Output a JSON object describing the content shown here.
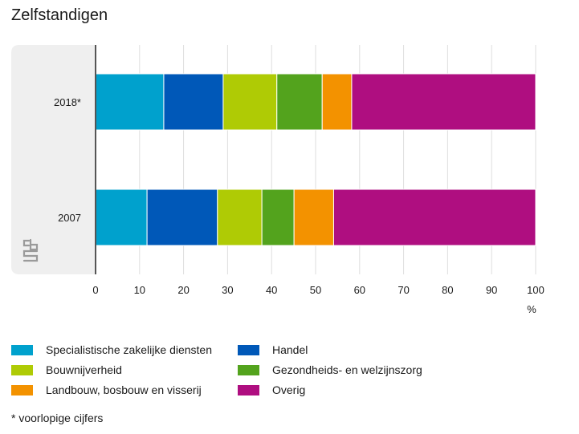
{
  "title": "Zelfstandigen",
  "footnote": "* voorlopige cijfers",
  "logo_icon": "cbs-logo-icon",
  "chart_data": {
    "type": "bar",
    "orientation": "horizontal",
    "stacked": true,
    "categories": [
      "2018*",
      "2007"
    ],
    "series": [
      {
        "name": "Specialistische zakelijke diensten",
        "color": "#00a1cd",
        "values": [
          15.5,
          11.7
        ]
      },
      {
        "name": "Handel",
        "color": "#0058b8",
        "values": [
          13.5,
          16.0
        ]
      },
      {
        "name": "Bouwnijverheid",
        "color": "#afcb05",
        "values": [
          12.2,
          10.1
        ]
      },
      {
        "name": "Gezondheids- en welzijnszorg",
        "color": "#53a31d",
        "values": [
          10.3,
          7.3
        ]
      },
      {
        "name": "Landbouw, bosbouw en visserij",
        "color": "#f39200",
        "values": [
          6.7,
          9.0
        ]
      },
      {
        "name": "Overig",
        "color": "#af0e80",
        "values": [
          41.8,
          45.9
        ]
      }
    ],
    "xlim": [
      0,
      100
    ],
    "xticks": [
      0,
      10,
      20,
      30,
      40,
      50,
      60,
      70,
      80,
      90,
      100
    ],
    "xlabel": "%",
    "grid": true,
    "legend_position": "bottom"
  }
}
